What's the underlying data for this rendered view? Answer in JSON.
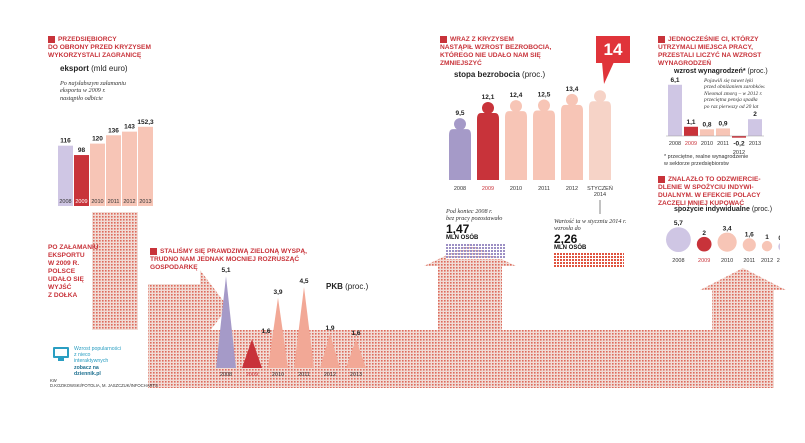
{
  "colors": {
    "red": "#c8333a",
    "salmon": "#f2a896",
    "light_salmon": "#f7c5b6",
    "lilac": "#a59ac8",
    "light_lilac": "#cfc6e4",
    "grid": "#d94e3f"
  },
  "exports": {
    "heading": "Przedsiębiorcy\ndo obrony przed kryzysem\nwykorzystali zagranicę",
    "subtitle": "eksport",
    "unit": "(mld euro)",
    "note": "Po najsłabszym załamaniu\neksportu w 2009 r.\nnastąpiło odbicie"
  },
  "exports_side": {
    "text": "Po załamaniu\neksportu\nw 2009 r.\nPolsce\nudało się\nwyjść\nz dołka"
  },
  "gdp": {
    "heading": "Staliśmy się prawdziwą zieloną wyspą,\ntrudno nam jednak mocniej rozrusząć\ngospodarkę",
    "subtitle": "PKB",
    "unit": "(proc.)"
  },
  "unemployment": {
    "heading": "Wraz z kryzysem\nnastąpił wzrost bezrobocia,\nktórego nie udało nam się\nzmniejszyć",
    "subtitle": "stopa bezrobocia",
    "unit": "(proc.)",
    "badge": "14",
    "note_left": "Pod koniec 2008 r.\nbez pracy pozostawało",
    "left_value": "1,47",
    "left_unit": "MLN OSÓB",
    "note_right": "Wartość ta w styczniu 2014 r.\nwzrosła do",
    "right_value": "2,26",
    "right_unit": "MLN OSÓB"
  },
  "wages": {
    "heading": "Jednocześnie ci, którzy\nutrzymali miejsca pracy,\nprzestali liczyć na wzrost\nwynagrodzeń",
    "subtitle": "wzrost wynagrodzeń*",
    "unit": "(proc.)",
    "note": "Pojawili się nawet lęki\nprzed obniżaniem zarobków.\nNieomal zmorą – w 2012 r.\nprzeciętna pensja spadła\npo raz pierwszy od 20 lat",
    "footnote": "* przeciętne, realne wynagrodzenie\n  w sektorze przedsiębiorstw"
  },
  "consumption": {
    "heading": "Znalazło to odzwiercie-\ndlenie w spożyciu indywi-\ndualnym. W efekcie Polacy\nzaczęli mniej kupować",
    "subtitle": "spożycie indywidualne",
    "unit": "(proc.)"
  },
  "promo": {
    "line1": "Wzrost popularności\nz nieco\ninteraktywnych",
    "line2": "zobacz na\ndziennik.pl"
  },
  "credit": {
    "line1": "kw",
    "line2": "d.kozikowski/fotolia, m. jaszczuk/infocharts"
  },
  "chart_data": [
    {
      "type": "bar",
      "title": "eksport",
      "ylabel": "mld euro",
      "categories": [
        "2008",
        "2009",
        "2010",
        "2011",
        "2012",
        "2013"
      ],
      "values": [
        116,
        98,
        120,
        136,
        143,
        152.3
      ]
    },
    {
      "type": "bar",
      "title": "PKB",
      "ylabel": "proc.",
      "categories": [
        "2008",
        "2009",
        "2010",
        "2011",
        "2012",
        "2013"
      ],
      "values": [
        5.1,
        1.6,
        3.9,
        4.5,
        1.9,
        1.6
      ],
      "value_labels": [
        "5,1",
        "1,6",
        "3,9",
        "4,5",
        "1,9",
        "1,6"
      ]
    },
    {
      "type": "bar",
      "title": "stopa bezrobocia",
      "ylabel": "proc.",
      "categories": [
        "2008",
        "2009",
        "2010",
        "2011",
        "2012",
        "STYCZEŃ 2014"
      ],
      "values": [
        9.5,
        12.1,
        12.4,
        12.5,
        13.4,
        14
      ],
      "value_labels": [
        "9,5",
        "12,1",
        "12,4",
        "12,5",
        "13,4",
        "14"
      ]
    },
    {
      "type": "bar",
      "title": "wzrost wynagrodzeń",
      "ylabel": "proc.",
      "categories": [
        "2008",
        "2009",
        "2010",
        "2011",
        "2012",
        "2013"
      ],
      "values": [
        6.1,
        1.1,
        0.8,
        0.9,
        -0.2,
        2
      ],
      "value_labels": [
        "6,1",
        "1,1",
        "0,8",
        "0,9",
        "-0,2",
        "2"
      ]
    },
    {
      "type": "scatter",
      "title": "spożycie indywidualne",
      "ylabel": "proc.",
      "categories": [
        "2008",
        "2009",
        "2010",
        "2011",
        "2012",
        "2013"
      ],
      "values": [
        5.7,
        2,
        3.4,
        1.6,
        1,
        0.8
      ],
      "value_labels": [
        "5,7",
        "2",
        "3,4",
        "1,6",
        "1",
        "0,8"
      ]
    }
  ]
}
